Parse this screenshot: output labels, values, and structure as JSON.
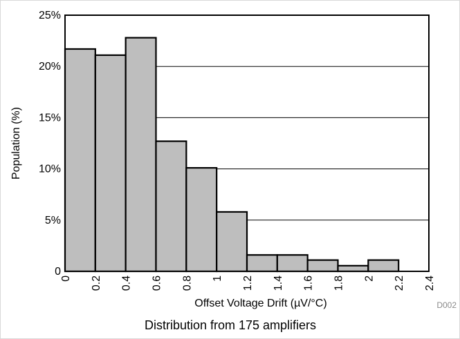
{
  "chart_data": {
    "type": "bar",
    "x": [
      0,
      0.2,
      0.4,
      0.6,
      0.8,
      1.0,
      1.2,
      1.4,
      1.6,
      1.8,
      2.0
    ],
    "bin_width": 0.2,
    "values": [
      21.7,
      21.1,
      22.8,
      12.7,
      10.1,
      5.8,
      1.6,
      1.6,
      1.1,
      0.55,
      1.1
    ],
    "xlabel": "Offset Voltage Drift (µV/°C)",
    "ylabel": "Population (%)",
    "xlim": [
      0,
      2.4
    ],
    "ylim": [
      0,
      25
    ],
    "x_ticks": [
      0,
      0.2,
      0.4,
      0.6,
      0.8,
      1,
      1.2,
      1.4,
      1.6,
      1.8,
      2,
      2.2,
      2.4
    ],
    "x_tick_labels": [
      "0",
      "0.2",
      "0.4",
      "0.6",
      "0.8",
      "1",
      "1.2",
      "1.4",
      "1.6",
      "1.8",
      "2",
      "2.2",
      "2.4"
    ],
    "y_ticks": [
      0,
      5,
      10,
      15,
      20,
      25
    ],
    "y_tick_labels": [
      "0",
      "5%",
      "10%",
      "15%",
      "20%",
      "25%"
    ],
    "grid": "horizontal",
    "bar_color": "#bebebe",
    "edge_color": "#000000",
    "code_label": "D002",
    "caption": "Distribution from 175 amplifiers"
  }
}
